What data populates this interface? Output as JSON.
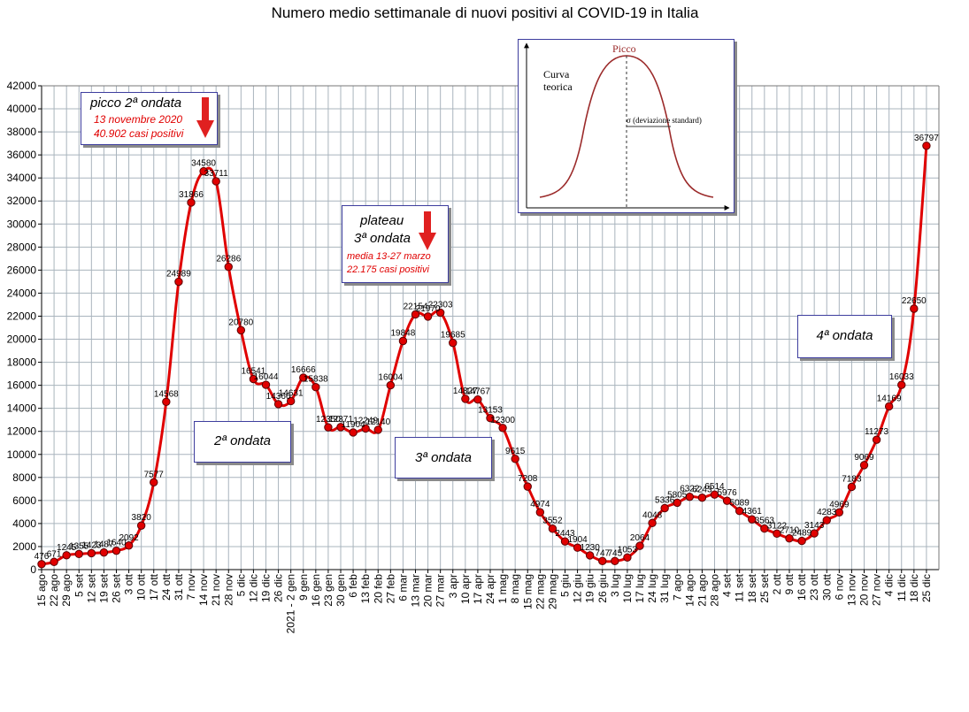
{
  "chart_data": {
    "type": "line",
    "title": "Numero medio settimanale di nuovi positivi al COVID-19 in Italia",
    "ylim": [
      0,
      42000
    ],
    "yticks": [
      0,
      2000,
      4000,
      6000,
      8000,
      10000,
      12000,
      14000,
      16000,
      18000,
      20000,
      22000,
      24000,
      26000,
      28000,
      30000,
      32000,
      34000,
      36000,
      38000,
      40000,
      42000
    ],
    "grid": true,
    "color": "#e00000",
    "x": [
      "15 ago",
      "22 ago",
      "29 ago",
      "5 set",
      "12 set",
      "19 set",
      "26 set",
      "3 ott",
      "10 ott",
      "17 ott",
      "24 ott",
      "31 ott",
      "7 nov",
      "14 nov",
      "21 nov",
      "28 nov",
      "5 dic",
      "12 dic",
      "19 dic",
      "26 dic",
      "2021 - 2 gen",
      "9 gen",
      "16 gen",
      "23 gen",
      "30 gen",
      "6 feb",
      "13 feb",
      "20 feb",
      "27 feb",
      "6 mar",
      "13 mar",
      "20 mar",
      "27 mar",
      "3 apr",
      "10 apr",
      "17 apr",
      "24 apr",
      "1 mag",
      "8 mag",
      "15 mag",
      "22 mag",
      "29 mag",
      "5 giu",
      "12 giu",
      "19 giu",
      "26 giu",
      "3 lug",
      "10 lug",
      "17 lug",
      "24 lug",
      "31 lug",
      "7 ago",
      "14 ago",
      "21 ago",
      "28 ago",
      "4 set",
      "11 set",
      "18 set",
      "25 set",
      "2 ott",
      "9 ott",
      "16 ott",
      "23 ott",
      "30 ott",
      "6 nov",
      "13 nov",
      "20 nov",
      "27 nov",
      "4 dic",
      "11 dic",
      "18 dic",
      "25 dic"
    ],
    "xticklabels": [
      "15 ago",
      "22 ago",
      "29 ago",
      "5 set",
      "12 set",
      "19 set",
      "26 set",
      "3 ott",
      "10 ott",
      "17 ott",
      "24 ott",
      "31 ott",
      "7 nov",
      "14 nov",
      "21 nov",
      "28 nov",
      "5 dic",
      "12 dic",
      "19 dic",
      "26 dic",
      "2021 - 2 gen",
      "9 gen",
      "16 gen",
      "23 gen",
      "30 gen",
      "6 feb",
      "13 feb",
      "20 feb",
      "27 feb",
      "6 mar",
      "13 mar",
      "20 mar",
      "27 mar",
      "3 apr",
      "10 apr",
      "17 apr",
      "24 apr",
      "1 mag",
      "8 mag",
      "15 mag",
      "22 mag",
      "29 mag",
      "5 giu",
      "12 giu",
      "19 giu",
      "26 giu",
      "3 lug",
      "10 lug",
      "17 lug",
      "24 lug",
      "31 lug",
      "7 ago",
      "14 ago",
      "21 ago",
      "28 ago",
      "4 set",
      "11 set",
      "18 set",
      "25 set",
      "2 ott",
      "9 ott",
      "16 ott",
      "23 ott",
      "30 ott",
      "6 nov",
      "13 nov",
      "20 nov",
      "27 nov",
      "4 dic",
      "11 dic",
      "18 dic",
      "25 dic"
    ],
    "values": [
      476,
      671,
      1245,
      1355,
      1423,
      1487,
      1640,
      2092,
      3820,
      7577,
      14568,
      24989,
      31866,
      34580,
      33711,
      26286,
      20780,
      16541,
      16044,
      14366,
      14631,
      16666,
      15838,
      12350,
      12371,
      11904,
      12249,
      12140,
      16004,
      19848,
      22154,
      21970,
      22303,
      19685,
      14827,
      14767,
      13153,
      12300,
      9615,
      7208,
      4974,
      3552,
      2443,
      1904,
      1230,
      747,
      745,
      1053,
      2064,
      4048,
      5336,
      5805,
      6322,
      6243,
      6514,
      5976,
      5089,
      4361,
      3563,
      3122,
      2710,
      2489,
      3143,
      4283,
      4969,
      7183,
      9069,
      11273,
      14169,
      16033,
      22650,
      36797
    ],
    "data_labels": [
      "476",
      "671",
      "1245",
      "1355",
      "1423",
      "1487",
      "1640",
      "2092",
      "3820",
      "7577",
      "14568",
      "24989",
      "31866",
      "34580",
      "33711",
      "26286",
      "20780",
      "16541",
      "16044",
      "14366",
      "14631",
      "16666",
      "15838",
      "12350",
      "12371",
      "11904",
      "12249",
      "12140",
      "16004",
      "19848",
      "22154",
      "21970",
      "22303",
      "19685",
      "14827",
      "14767",
      "13153",
      "12300",
      "9615",
      "7208",
      "4974",
      "3552",
      "2443",
      "1904",
      "1230",
      "747",
      "745",
      "1053",
      "2064",
      "4048",
      "5336",
      "5805",
      "6322",
      "6243",
      "6514",
      "5976",
      "5089",
      "4361",
      "3563",
      "3122",
      "2710",
      "2489",
      "3143",
      "4283",
      "4969",
      "7183",
      "9069",
      "11273",
      "14169",
      "16033",
      "22650",
      "36797"
    ]
  },
  "annotations": {
    "peak2": {
      "title": "picco 2ª ondata",
      "line1": "13 novembre 2020",
      "line2": "40.902 casi positivi"
    },
    "plateau3": {
      "title1": "plateau",
      "title2": "3ª ondata",
      "line1": "media 13-27 marzo",
      "line2": "22.175 casi positivi"
    },
    "wave2": "2ª ondata",
    "wave3": "3ª ondata",
    "wave4": "4ª ondata"
  },
  "inset": {
    "peak_label": "Picco",
    "curve_label_1": "Curva",
    "curve_label_2": "teorica",
    "sigma_label": "σ (deviazione standard)"
  }
}
